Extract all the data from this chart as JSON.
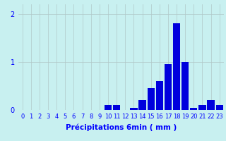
{
  "xlabel": "Précipitations 6min ( mm )",
  "xlim": [
    -0.5,
    23.5
  ],
  "ylim": [
    0,
    2.2
  ],
  "yticks": [
    0,
    1,
    2
  ],
  "xticks": [
    0,
    1,
    2,
    3,
    4,
    5,
    6,
    7,
    8,
    9,
    10,
    11,
    12,
    13,
    14,
    15,
    16,
    17,
    18,
    19,
    20,
    21,
    22,
    23
  ],
  "bar_color": "#0000dd",
  "background_color": "#c8f0f0",
  "grid_color": "#b0c8c8",
  "values": [
    0,
    0,
    0,
    0,
    0,
    0,
    0,
    0,
    0,
    0,
    0.1,
    0.1,
    0,
    0.05,
    0.2,
    0.45,
    0.6,
    0.95,
    1.8,
    1.0,
    0.05,
    0.1,
    0.2,
    0.1
  ],
  "tick_fontsize": 6,
  "xlabel_fontsize": 7.5,
  "bar_width": 0.85
}
